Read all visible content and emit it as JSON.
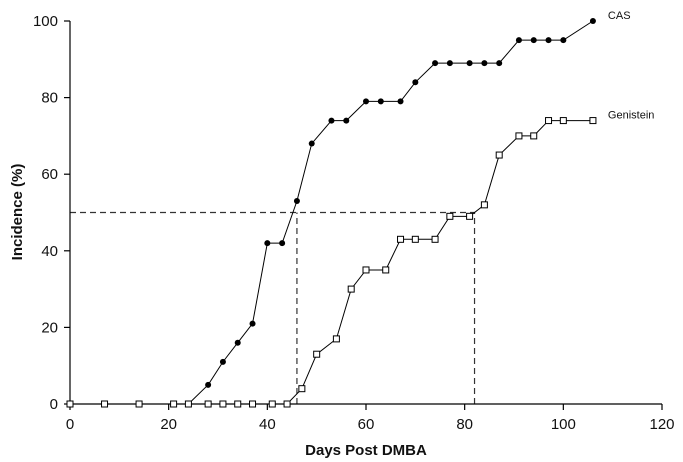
{
  "chart_data": {
    "type": "line",
    "title": "",
    "xlabel": "Days Post DMBA",
    "ylabel": "Incidence (%)",
    "xlim": [
      0,
      120
    ],
    "ylim": [
      0,
      100
    ],
    "xticks": [
      0,
      20,
      40,
      60,
      80,
      100,
      120
    ],
    "yticks": [
      0,
      20,
      40,
      60,
      80,
      100
    ],
    "grid": false,
    "legend": "series labels at end of lines",
    "series": [
      {
        "name": "CAS",
        "marker": "filled-circle",
        "color": "#000000",
        "x": [
          0,
          7,
          14,
          21,
          24,
          28,
          31,
          34,
          37,
          40,
          43,
          46,
          49,
          53,
          56,
          60,
          63,
          67,
          70,
          74,
          77,
          81,
          84,
          87,
          91,
          94,
          97,
          100,
          106
        ],
        "y": [
          0,
          0,
          0,
          0,
          0,
          5,
          11,
          16,
          21,
          42,
          42,
          53,
          68,
          74,
          74,
          79,
          79,
          79,
          84,
          89,
          89,
          89,
          89,
          89,
          95,
          95,
          95,
          95,
          100
        ]
      },
      {
        "name": "Genistein",
        "marker": "open-square",
        "color": "#000000",
        "x": [
          0,
          7,
          14,
          21,
          24,
          28,
          31,
          34,
          37,
          41,
          44,
          47,
          50,
          54,
          57,
          60,
          64,
          67,
          70,
          74,
          77,
          81,
          84,
          87,
          91,
          94,
          97,
          100,
          106
        ],
        "y": [
          0,
          0,
          0,
          0,
          0,
          0,
          0,
          0,
          0,
          0,
          0,
          4,
          13,
          17,
          30,
          35,
          35,
          43,
          43,
          43,
          49,
          49,
          52,
          65,
          70,
          70,
          74,
          74,
          74
        ]
      }
    ],
    "reference_lines": [
      {
        "kind": "horizontal",
        "y": 50,
        "x_from": 0,
        "x_to": 82,
        "style": "dashed"
      },
      {
        "kind": "vertical",
        "x": 46,
        "y_from": 0,
        "y_to": 50,
        "style": "dashed"
      },
      {
        "kind": "vertical",
        "x": 82,
        "y_from": 0,
        "y_to": 50,
        "style": "dashed"
      }
    ]
  }
}
